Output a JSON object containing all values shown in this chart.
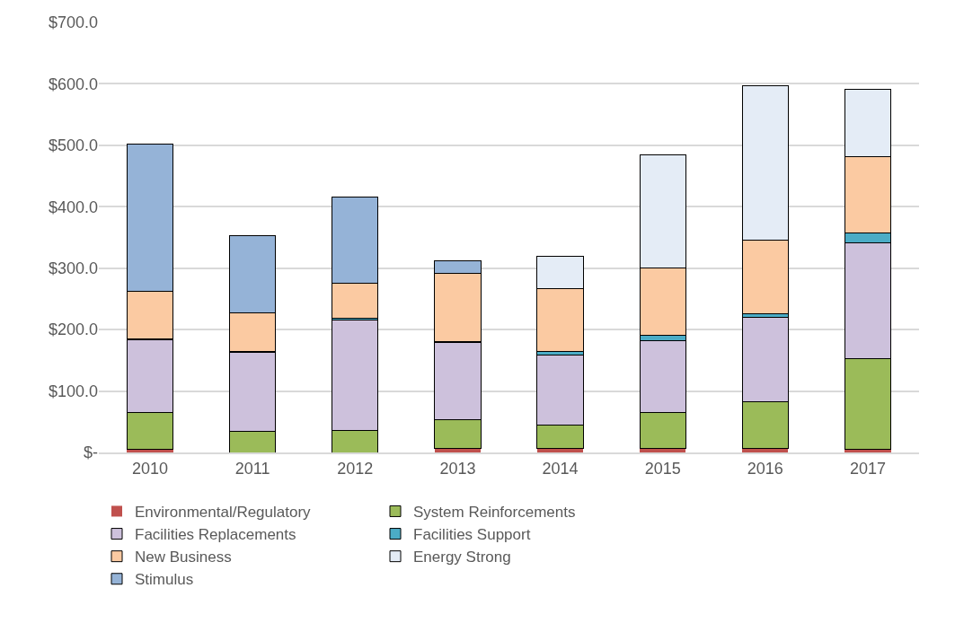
{
  "chart_data": {
    "type": "bar",
    "stacked": true,
    "categories": [
      "2010",
      "2011",
      "2012",
      "2013",
      "2014",
      "2015",
      "2016",
      "2017"
    ],
    "series": [
      {
        "name": "Environmental/Regulatory",
        "color": "#c0504d",
        "values": [
          5,
          null,
          null,
          6,
          6,
          6,
          7,
          5
        ]
      },
      {
        "name": "System Reinforcements",
        "color": "#9bbb59",
        "values": [
          60,
          35,
          36,
          48,
          38,
          59,
          76,
          148
        ]
      },
      {
        "name": "Facilities Replacements",
        "color": "#cdc1dc",
        "values": [
          118,
          128,
          179,
          125,
          114,
          117,
          137,
          188
        ]
      },
      {
        "name": "Facilities Support",
        "color": "#4bacc6",
        "values": [
          2,
          2,
          3,
          2,
          6,
          8,
          6,
          17
        ]
      },
      {
        "name": "New Business",
        "color": "#fbcaa2",
        "values": [
          77,
          62,
          58,
          110,
          102,
          111,
          119,
          124
        ]
      },
      {
        "name": "Energy Strong",
        "color": "#e4ecf6",
        "values": [
          null,
          null,
          null,
          null,
          54,
          183,
          252,
          109
        ]
      },
      {
        "name": "Stimulus",
        "color": "#95b3d7",
        "values": [
          240,
          126,
          140,
          21,
          null,
          null,
          null,
          null
        ]
      }
    ],
    "ylim": [
      0,
      700
    ],
    "yticks": [
      {
        "value": 0,
        "label": "$-"
      },
      {
        "value": 100,
        "label": "$100.0"
      },
      {
        "value": 200,
        "label": "$200.0"
      },
      {
        "value": 300,
        "label": "$300.0"
      },
      {
        "value": 400,
        "label": "$400.0"
      },
      {
        "value": 500,
        "label": "$500.0"
      },
      {
        "value": 600,
        "label": "$600.0"
      },
      {
        "value": 700,
        "label": "$700.0"
      }
    ],
    "grid": "y",
    "legend": "bottom"
  }
}
